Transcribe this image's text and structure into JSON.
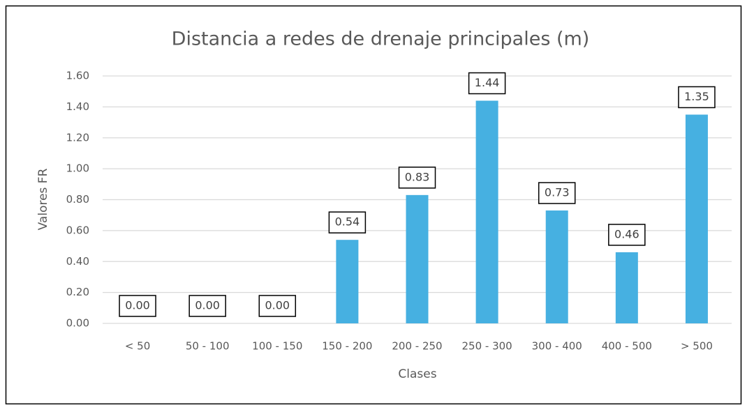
{
  "chart_data": {
    "type": "bar",
    "title": "Distancia a redes de drenaje principales (m)",
    "x_label": "Clases",
    "y_label": "Valores FR",
    "categories": [
      "< 50",
      "50 - 100",
      "100 - 150",
      "150 - 200",
      "200 - 250",
      "250 - 300",
      "300 - 400",
      "400 - 500",
      "> 500"
    ],
    "values": [
      0,
      0,
      0,
      0.54,
      0.83,
      1.44,
      0.73,
      0.46,
      1.35
    ],
    "value_labels": [
      "0.00",
      "0.00",
      "0.00",
      "0.54",
      "0.83",
      "1.44",
      "0.73",
      "0.46",
      "1.35"
    ],
    "color": "#46b0e1",
    "ylim": [
      0,
      1.6
    ],
    "yticks": [
      {
        "value": 0,
        "label": "0.00"
      },
      {
        "value": 0.2,
        "label": "0.20"
      },
      {
        "value": 0.4,
        "label": "0.40"
      },
      {
        "value": 0.6,
        "label": "0.60"
      },
      {
        "value": 0.8,
        "label": "0.80"
      },
      {
        "value": 1,
        "label": "1.00"
      },
      {
        "value": 1.2,
        "label": "1.20"
      },
      {
        "value": 1.4,
        "label": "1.40"
      },
      {
        "value": 1.6,
        "label": "1.60"
      }
    ],
    "grid": true
  }
}
